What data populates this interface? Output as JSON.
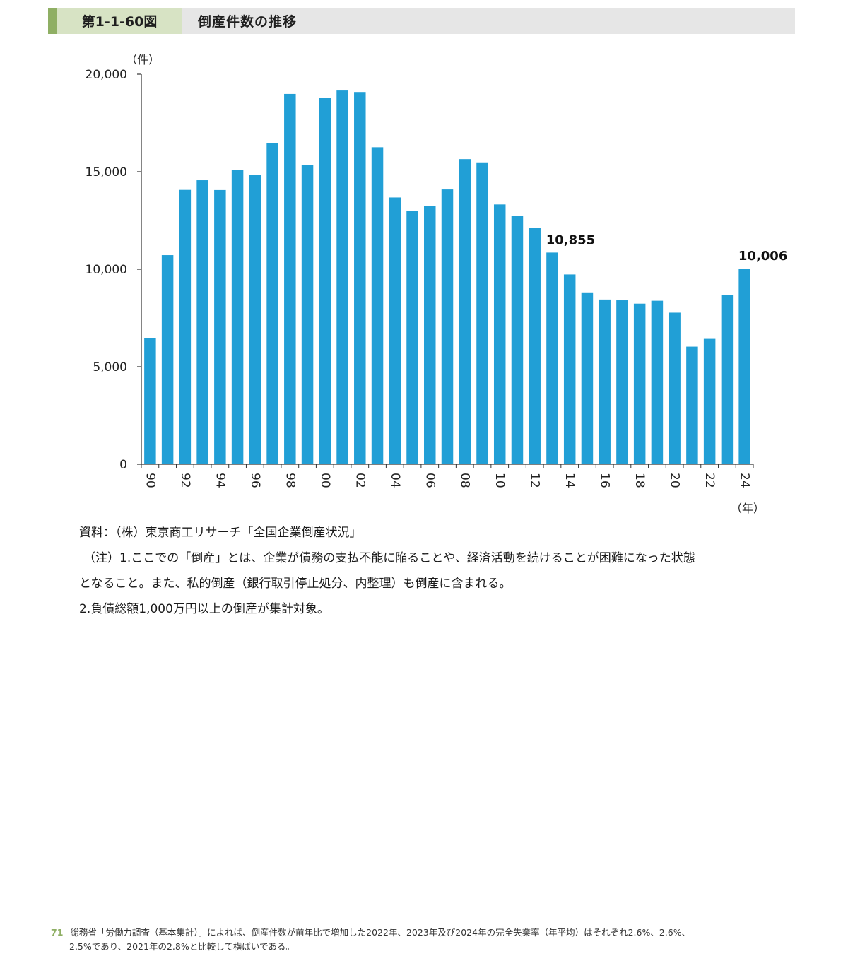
{
  "header": {
    "figure_no": "第1-1-60図",
    "title": "倒産件数の推移"
  },
  "chart_data": {
    "type": "bar",
    "title": "倒産件数の推移",
    "ylabel": "（件）",
    "xlabel": "（年）",
    "ylim": [
      0,
      20000
    ],
    "yticks": [
      "0",
      "5,000",
      "10,000",
      "15,000",
      "20,000"
    ],
    "ytick_values": [
      0,
      5000,
      10000,
      15000,
      20000
    ],
    "categories": [
      "90",
      "91",
      "92",
      "93",
      "94",
      "95",
      "96",
      "97",
      "98",
      "99",
      "00",
      "01",
      "02",
      "03",
      "04",
      "05",
      "06",
      "07",
      "08",
      "09",
      "10",
      "11",
      "12",
      "13",
      "14",
      "15",
      "16",
      "17",
      "18",
      "19",
      "20",
      "21",
      "22",
      "23",
      "24"
    ],
    "tick_labels_shown": [
      "90",
      "92",
      "94",
      "96",
      "98",
      "00",
      "02",
      "04",
      "06",
      "08",
      "10",
      "12",
      "14",
      "16",
      "18",
      "20",
      "22",
      "24"
    ],
    "values": [
      6468,
      10723,
      14069,
      14564,
      14061,
      15108,
      14834,
      16464,
      18988,
      15352,
      18769,
      19164,
      19087,
      16255,
      13679,
      12998,
      13245,
      14091,
      15646,
      15480,
      13321,
      12734,
      12124,
      10855,
      9731,
      8812,
      8446,
      8405,
      8235,
      8383,
      7773,
      6030,
      6428,
      8690,
      10006
    ],
    "annotations": [
      {
        "category": "13",
        "label": "10,855"
      },
      {
        "category": "24",
        "label": "10,006"
      }
    ],
    "bar_color": "#219fd6",
    "grid": false
  },
  "notes": {
    "source": "資料：（株）東京商工リサーチ「全国企業倒産状況」",
    "note1_line1": "（注）1.ここでの「倒産」とは、企業が債務の支払不能に陥ることや、経済活動を続けることが困難になった状態",
    "note1_line2": "となること。また、私的倒産（銀行取引停止処分、内整理）も倒産に含まれる。",
    "note2": "2.負債総額1,000万円以上の倒産が集計対象。"
  },
  "footer": {
    "page_number": "71",
    "line1": "総務省「労働力調査（基本集計）」によれば、倒産件数が前年比で増加した2022年、2023年及び2024年の完全失業率（年平均）はそれぞれ2.6%、2.6%、",
    "line2": "2.5%であり、2021年の2.8%と比較して横ばいである。"
  },
  "colors": {
    "accent": "#8faf64",
    "figure_box": "#d7e3c4",
    "header_bg": "#e6e6e6",
    "bar": "#219fd6"
  }
}
